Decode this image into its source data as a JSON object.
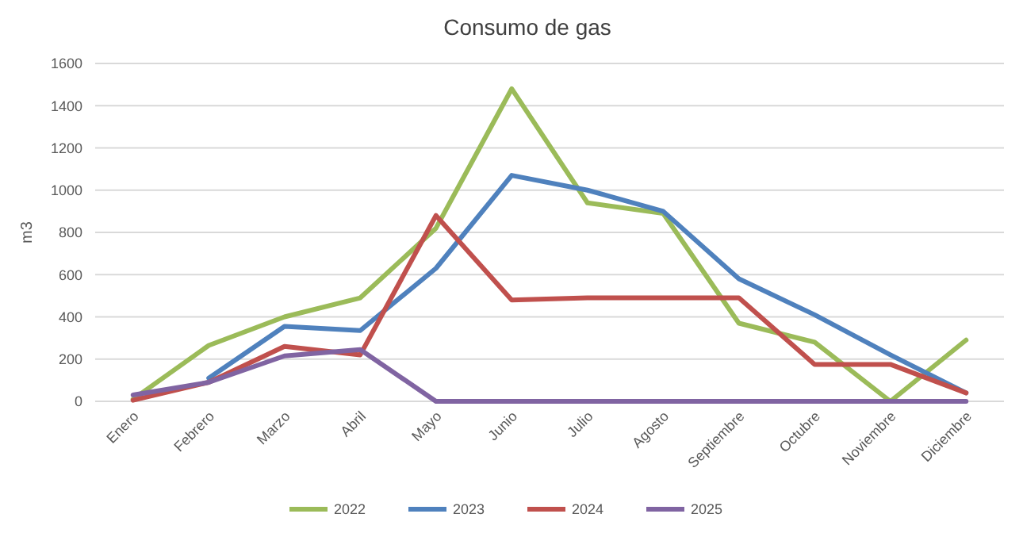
{
  "chart_data": {
    "type": "line",
    "title": "Consumo de gas",
    "ylabel": "m3",
    "categories": [
      "Enero",
      "Febrero",
      "Marzo",
      "Abril",
      "Mayo",
      "Junio",
      "Julio",
      "Agosto",
      "Septiembre",
      "Octubre",
      "Noviembre",
      "Diciembre"
    ],
    "series": [
      {
        "name": "2022",
        "color": "#9bbb59",
        "values": [
          10,
          265,
          400,
          490,
          820,
          1480,
          940,
          890,
          370,
          280,
          0,
          290
        ]
      },
      {
        "name": "2023",
        "color": "#4f81bd",
        "values": [
          null,
          110,
          355,
          335,
          630,
          1070,
          1000,
          900,
          580,
          410,
          220,
          40
        ]
      },
      {
        "name": "2024",
        "color": "#c0504d",
        "values": [
          5,
          90,
          260,
          220,
          880,
          480,
          490,
          490,
          490,
          175,
          175,
          40
        ]
      },
      {
        "name": "2025",
        "color": "#8064a2",
        "values": [
          30,
          90,
          215,
          245,
          0,
          0,
          0,
          0,
          0,
          0,
          0,
          0
        ]
      }
    ],
    "ylim": [
      0,
      1600
    ],
    "yticks": [
      0,
      200,
      400,
      600,
      800,
      1000,
      1200,
      1400,
      1600
    ],
    "grid": "y",
    "legend": "bottom",
    "marker": "none",
    "line_style": "solid"
  }
}
